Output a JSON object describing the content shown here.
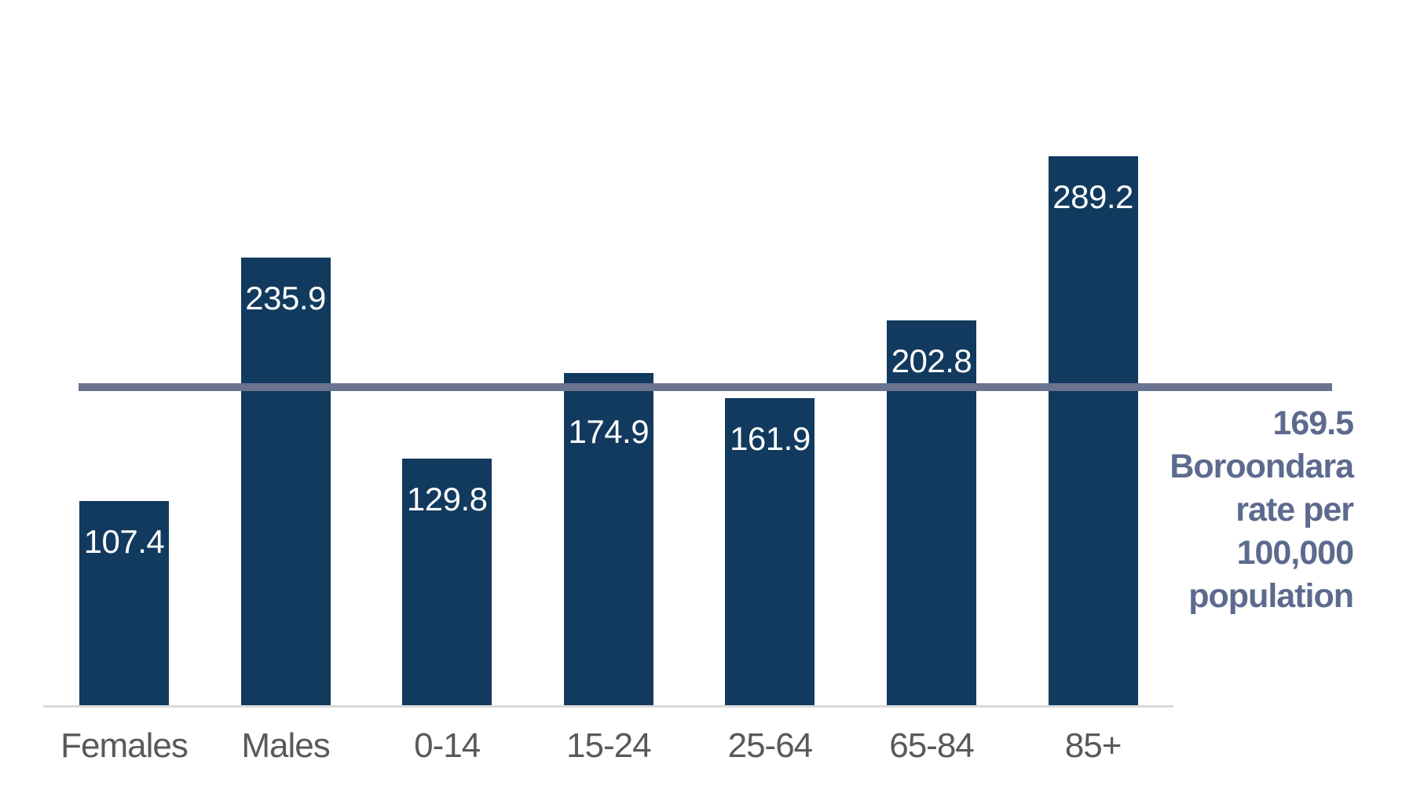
{
  "chart_data": {
    "type": "bar",
    "title": "",
    "xlabel": "",
    "ylabel": "",
    "categories": [
      "Females",
      "Males",
      "0-14",
      "15-24",
      "25-64",
      "65-84",
      "85+"
    ],
    "values": [
      107.4,
      235.9,
      129.8,
      174.9,
      161.9,
      202.8,
      289.2
    ],
    "ylim": [
      0,
      300
    ],
    "grid": false,
    "legend": "none",
    "value_labels_position": "inside-top",
    "reference_line": {
      "value": 169.5,
      "label_lines": [
        "169.5",
        "Boroondara",
        "rate per",
        "100,000",
        "population"
      ]
    },
    "colors": {
      "bar": "#113A5E",
      "value_label": "#FFFFFF",
      "reference_line": "#6A7390",
      "reference_label": "#5C6A8E",
      "category_label": "#595959",
      "axis_line": "#D9D9D9",
      "background": "#FFFFFF"
    }
  }
}
